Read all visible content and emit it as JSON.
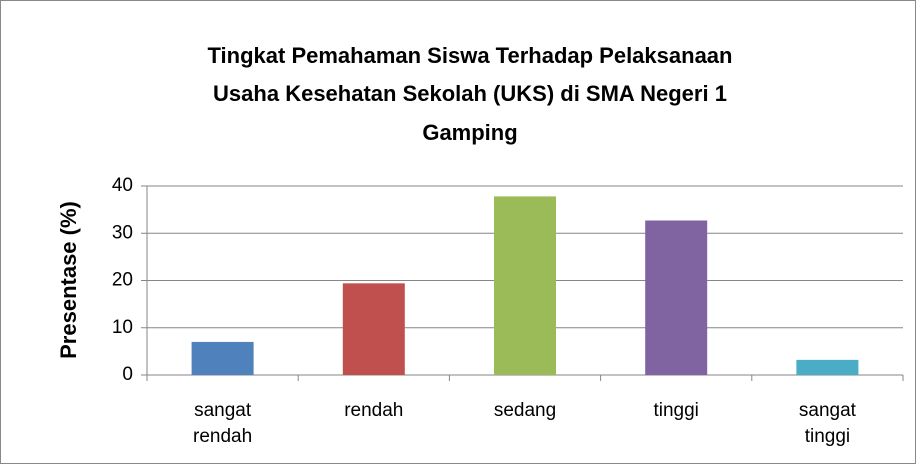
{
  "chart_data": {
    "type": "bar",
    "title": [
      "Tingkat Pemahaman Siswa Terhadap Pelaksanaan",
      "Usaha Kesehatan Sekolah (UKS) di SMA Negeri 1",
      "Gamping"
    ],
    "y_label": "Presentase (%)",
    "categories": [
      "sangat rendah",
      "rendah",
      "sedang",
      "tinggi",
      "sangat tinggi"
    ],
    "values": [
      7,
      19.4,
      37.8,
      32.7,
      3.2
    ],
    "colors": [
      "#4f81bd",
      "#c0504d",
      "#9bbb59",
      "#8064a2",
      "#4bacc6"
    ],
    "ylim": [
      0,
      40
    ],
    "yticks": [
      0,
      10,
      20,
      30,
      40
    ],
    "grid": true
  }
}
